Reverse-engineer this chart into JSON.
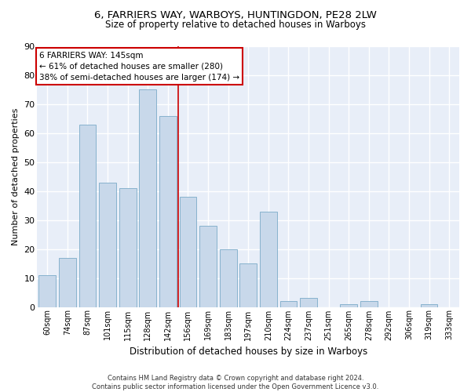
{
  "title1": "6, FARRIERS WAY, WARBOYS, HUNTINGDON, PE28 2LW",
  "title2": "Size of property relative to detached houses in Warboys",
  "xlabel": "Distribution of detached houses by size in Warboys",
  "ylabel": "Number of detached properties",
  "categories": [
    "60sqm",
    "74sqm",
    "87sqm",
    "101sqm",
    "115sqm",
    "128sqm",
    "142sqm",
    "156sqm",
    "169sqm",
    "183sqm",
    "197sqm",
    "210sqm",
    "224sqm",
    "237sqm",
    "251sqm",
    "265sqm",
    "278sqm",
    "292sqm",
    "306sqm",
    "319sqm",
    "333sqm"
  ],
  "values": [
    11,
    17,
    63,
    43,
    41,
    75,
    66,
    38,
    28,
    20,
    15,
    33,
    2,
    3,
    0,
    1,
    2,
    0,
    0,
    1,
    0
  ],
  "bar_color": "#c8d8ea",
  "bar_edge_color": "#7aaac8",
  "vline_color": "#cc0000",
  "annotation_text": "6 FARRIERS WAY: 145sqm\n← 61% of detached houses are smaller (280)\n38% of semi-detached houses are larger (174) →",
  "annotation_box_color": "#ffffff",
  "annotation_box_edge": "#cc0000",
  "bg_color": "#e8eef8",
  "grid_color": "#ffffff",
  "footer": "Contains HM Land Registry data © Crown copyright and database right 2024.\nContains public sector information licensed under the Open Government Licence v3.0.",
  "ylim": [
    0,
    90
  ],
  "yticks": [
    0,
    10,
    20,
    30,
    40,
    50,
    60,
    70,
    80,
    90
  ]
}
